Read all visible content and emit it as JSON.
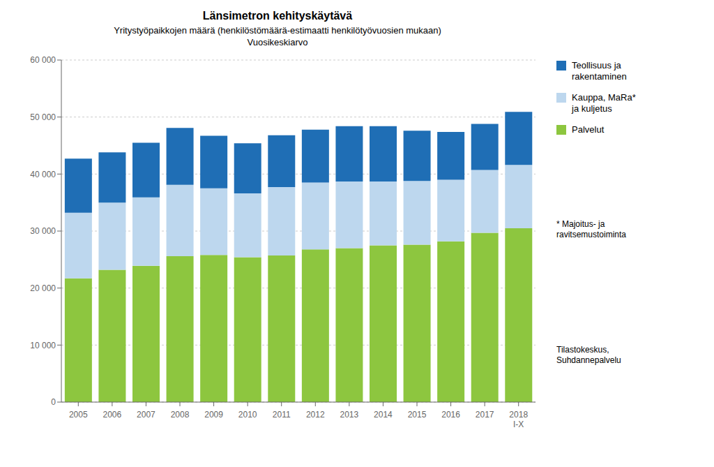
{
  "chart_data": {
    "type": "bar",
    "title": "Länsimetron kehityskäytävä",
    "subtitle": [
      "Yritystyöpaikkojen määrä (henkilöstömäärä-estimaatti henkilötyövuosien mukaan)",
      "Vuosikeskiarvo"
    ],
    "categories": [
      "2005",
      "2006",
      "2007",
      "2008",
      "2009",
      "2010",
      "2011",
      "2012",
      "2013",
      "2014",
      "2015",
      "2016",
      "2017",
      "2018\nI-X"
    ],
    "series": [
      {
        "name": "Palvelut",
        "color": "#8DC63F",
        "values": [
          21700,
          23200,
          23900,
          25600,
          25800,
          25400,
          25700,
          26800,
          27000,
          27500,
          27600,
          28200,
          29700,
          30500
        ]
      },
      {
        "name": "Kauppa, MaRa*\nja kuljetus",
        "color": "#BDD7EE",
        "values": [
          11500,
          11800,
          12000,
          12500,
          11700,
          11200,
          12000,
          11700,
          11700,
          11200,
          11200,
          10800,
          11000,
          11100
        ]
      },
      {
        "name": "Teollisuus ja\nrakentaminen",
        "color": "#1F6EB5",
        "values": [
          9500,
          8800,
          9600,
          10000,
          9200,
          8800,
          9100,
          9300,
          9700,
          9700,
          8800,
          8400,
          8100,
          9300
        ]
      }
    ],
    "stacked": true,
    "ylim": [
      0,
      60000
    ],
    "yticks": [
      0,
      {
        "value": 10000,
        "label": "10 000"
      },
      {
        "value": 20000,
        "label": "20 000"
      },
      {
        "value": 30000,
        "label": "30 000"
      },
      {
        "value": 40000,
        "label": "40 000"
      },
      {
        "value": 50000,
        "label": "50 000"
      },
      {
        "value": 60000,
        "label": "60 000"
      }
    ],
    "grid": true,
    "legend": "right",
    "annotations": [
      "* Majoitus- ja\nravitsemustoiminta",
      "Tilastokeskus,\nSuhdannepalvelu"
    ]
  }
}
